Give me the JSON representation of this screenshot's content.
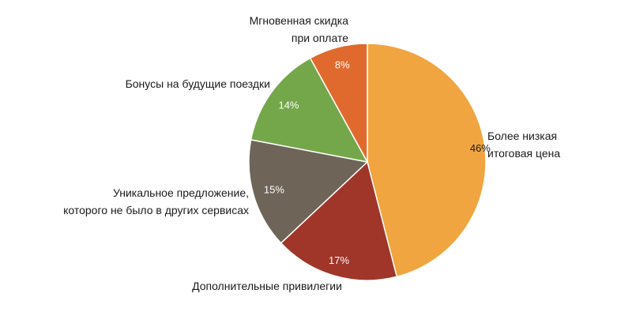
{
  "chart_data": {
    "type": "pie",
    "start_angle_deg": 0,
    "direction": "clockwise",
    "slices": [
      {
        "label": [
          "Более низкая",
          "итоговая цена"
        ],
        "value": 46,
        "value_label": "46%",
        "color": "#F0A540",
        "value_label_color": "#1a1a1a"
      },
      {
        "label": [
          "Дополнительные привилегии"
        ],
        "value": 17,
        "value_label": "17%",
        "color": "#A0362A",
        "value_label_color": "#ffffff"
      },
      {
        "label": [
          "Уникальное предложение,",
          "которого не было в других сервисах"
        ],
        "value": 15,
        "value_label": "15%",
        "color": "#6E6558",
        "value_label_color": "#ffffff"
      },
      {
        "label": [
          "Бонусы на будущие поездки"
        ],
        "value": 14,
        "value_label": "14%",
        "color": "#74A74A",
        "value_label_color": "#ffffff"
      },
      {
        "label": [
          "Мгновенная скидка",
          "при оплате"
        ],
        "value": 8,
        "value_label": "8%",
        "color": "#E06A2E",
        "value_label_color": "#ffffff"
      }
    ]
  }
}
